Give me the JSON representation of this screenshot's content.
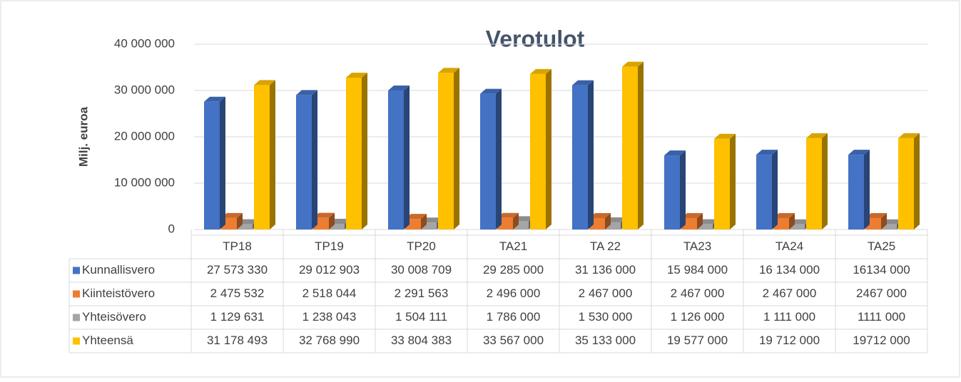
{
  "chart_data": {
    "type": "bar3d",
    "title": "Verotulot",
    "y_label": "Milj. euroa",
    "categories": [
      "TP18",
      "TP19",
      "TP20",
      "TA21",
      "TA 22",
      "TA23",
      "TA24",
      "TA25"
    ],
    "ylim": [
      0,
      40000000
    ],
    "yticks": [
      {
        "value": 0,
        "label": "0"
      },
      {
        "value": 10000000,
        "label": "10 000 000"
      },
      {
        "value": 20000000,
        "label": "20 000 000"
      },
      {
        "value": 30000000,
        "label": "30 000 000"
      },
      {
        "value": 40000000,
        "label": "40 000 000"
      }
    ],
    "grid": true,
    "series": [
      {
        "name": "Kunnallisvero",
        "color": "#4472c4",
        "values": [
          27573330,
          29012903,
          30008709,
          29285000,
          31136000,
          15984000,
          16134000,
          16134000
        ],
        "value_labels": [
          "27 573 330",
          "29 012 903",
          "30 008 709",
          "29 285 000",
          "31 136 000",
          "15 984 000",
          "16 134 000",
          "16134 000"
        ]
      },
      {
        "name": "Kiinteistövero",
        "color": "#ed7d31",
        "values": [
          2475532,
          2518044,
          2291563,
          2496000,
          2467000,
          2467000,
          2467000,
          2467000
        ],
        "value_labels": [
          "2 475 532",
          "2 518 044",
          "2 291 563",
          "2 496 000",
          "2 467 000",
          "2 467 000",
          "2 467 000",
          "2467 000"
        ]
      },
      {
        "name": "Yhteisövero",
        "color": "#a5a5a5",
        "values": [
          1129631,
          1238043,
          1504111,
          1786000,
          1530000,
          1126000,
          1111000,
          1111000
        ],
        "value_labels": [
          "1 129 631",
          "1 238 043",
          "1 504 111",
          "1 786 000",
          "1 530 000",
          "1 126 000",
          "1 111 000",
          "1111 000"
        ]
      },
      {
        "name": "Yhteensä",
        "color": "#ffc000",
        "values": [
          31178493,
          32768990,
          33804383,
          33567000,
          35133000,
          19577000,
          19712000,
          19712000
        ],
        "value_labels": [
          "31 178 493",
          "32 768 990",
          "33 804 383",
          "33 567 000",
          "35 133 000",
          "19 577 000",
          "19 712 000",
          "19712 000"
        ]
      }
    ]
  }
}
